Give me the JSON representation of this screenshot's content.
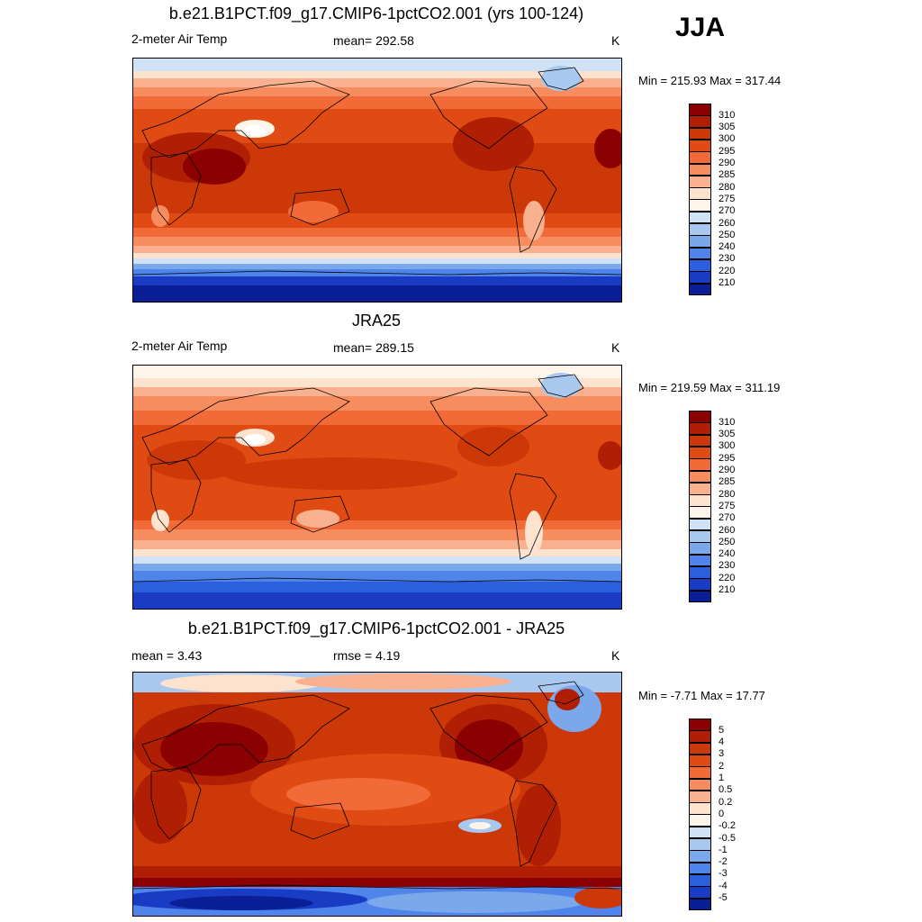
{
  "season": "JJA",
  "panels": [
    {
      "title": "b.e21.B1PCT.f09_g17.CMIP6-1pctCO2.001 (yrs 100-124)",
      "left_label": "2-meter Air Temp",
      "center_label": "mean= 292.58",
      "units": "K",
      "minmax": "Min = 215.93 Max = 317.44",
      "map_kind": "model",
      "levels": [
        "310",
        "305",
        "300",
        "295",
        "290",
        "285",
        "280",
        "275",
        "270",
        "260",
        "250",
        "240",
        "230",
        "220",
        "210"
      ],
      "colors": [
        "#8b0000",
        "#b01f04",
        "#cc3808",
        "#e04a13",
        "#f26a38",
        "#f78c5e",
        "#f9b08e",
        "#fde2cd",
        "#fef5ea",
        "#cfe2f6",
        "#a8c8ef",
        "#7aa8eb",
        "#4f85ea",
        "#2a5fdd",
        "#1a3cc4",
        "#0a1f95"
      ]
    },
    {
      "title": "JRA25",
      "left_label": "2-meter Air Temp",
      "center_label": "mean= 289.15",
      "units": "K",
      "minmax": "Min = 219.59 Max = 311.19",
      "map_kind": "obs",
      "levels": [
        "310",
        "305",
        "300",
        "295",
        "290",
        "285",
        "280",
        "275",
        "270",
        "260",
        "250",
        "240",
        "230",
        "220",
        "210"
      ],
      "colors": [
        "#8b0000",
        "#b01f04",
        "#cc3808",
        "#e04a13",
        "#f26a38",
        "#f78c5e",
        "#f9b08e",
        "#fde2cd",
        "#fef5ea",
        "#cfe2f6",
        "#a8c8ef",
        "#7aa8eb",
        "#4f85ea",
        "#2a5fdd",
        "#1a3cc4",
        "#0a1f95"
      ]
    },
    {
      "title": "b.e21.B1PCT.f09_g17.CMIP6-1pctCO2.001 - JRA25",
      "left_label": "mean =   3.43",
      "center_label": "rmse =   4.19",
      "units": "K",
      "minmax": "Min =  -7.71 Max =  17.77",
      "map_kind": "diff",
      "levels": [
        "5",
        "4",
        "3",
        "2",
        "1",
        "0.5",
        "0.2",
        "0",
        "-0.2",
        "-0.5",
        "-1",
        "-2",
        "-3",
        "-4",
        "-5"
      ],
      "colors": [
        "#8b0000",
        "#b01f04",
        "#cc3808",
        "#e04a13",
        "#f26a38",
        "#f78c5e",
        "#f9b08e",
        "#fde2cd",
        "#fef5ea",
        "#cfe2f6",
        "#a8c8ef",
        "#7aa8eb",
        "#4f85ea",
        "#2a5fdd",
        "#1a3cc4",
        "#0a1f95"
      ]
    }
  ]
}
